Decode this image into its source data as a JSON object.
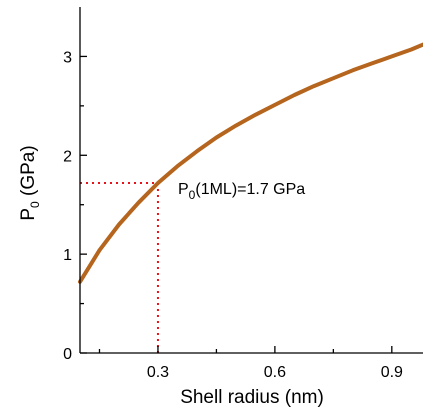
{
  "chart_data": {
    "type": "line",
    "xlabel": "Shell radius (nm)",
    "ylabel_main": "P",
    "ylabel_sub": "0",
    "ylabel_rest": " (GPa)",
    "xlim": [
      0.1,
      0.98
    ],
    "ylim": [
      0,
      3.5
    ],
    "xticks": [
      0.3,
      0.6,
      0.9
    ],
    "xtick_labels": [
      "0.3",
      "0.6",
      "0.9"
    ],
    "xminor": [
      0.15,
      0.45,
      0.75
    ],
    "yticks": [
      0,
      1,
      2,
      3
    ],
    "ytick_labels": [
      "0",
      "1",
      "2",
      "3"
    ],
    "yminor": [
      0.5,
      1.5,
      2.5
    ],
    "series": [
      {
        "color": "#b5651d",
        "x": [
          0.1,
          0.15,
          0.2,
          0.25,
          0.3,
          0.35,
          0.4,
          0.45,
          0.5,
          0.55,
          0.6,
          0.65,
          0.7,
          0.75,
          0.8,
          0.85,
          0.9,
          0.95,
          0.98
        ],
        "y": [
          0.72,
          1.04,
          1.3,
          1.52,
          1.72,
          1.89,
          2.04,
          2.18,
          2.3,
          2.41,
          2.51,
          2.61,
          2.7,
          2.78,
          2.86,
          2.93,
          3.0,
          3.07,
          3.12
        ]
      }
    ],
    "reference": {
      "x": 0.3,
      "y": 1.72,
      "color": "#e8121b"
    },
    "annotation": {
      "main": "P",
      "sub": "0",
      "rest": "(1ML)=1.7 GPa"
    },
    "grid": false
  }
}
